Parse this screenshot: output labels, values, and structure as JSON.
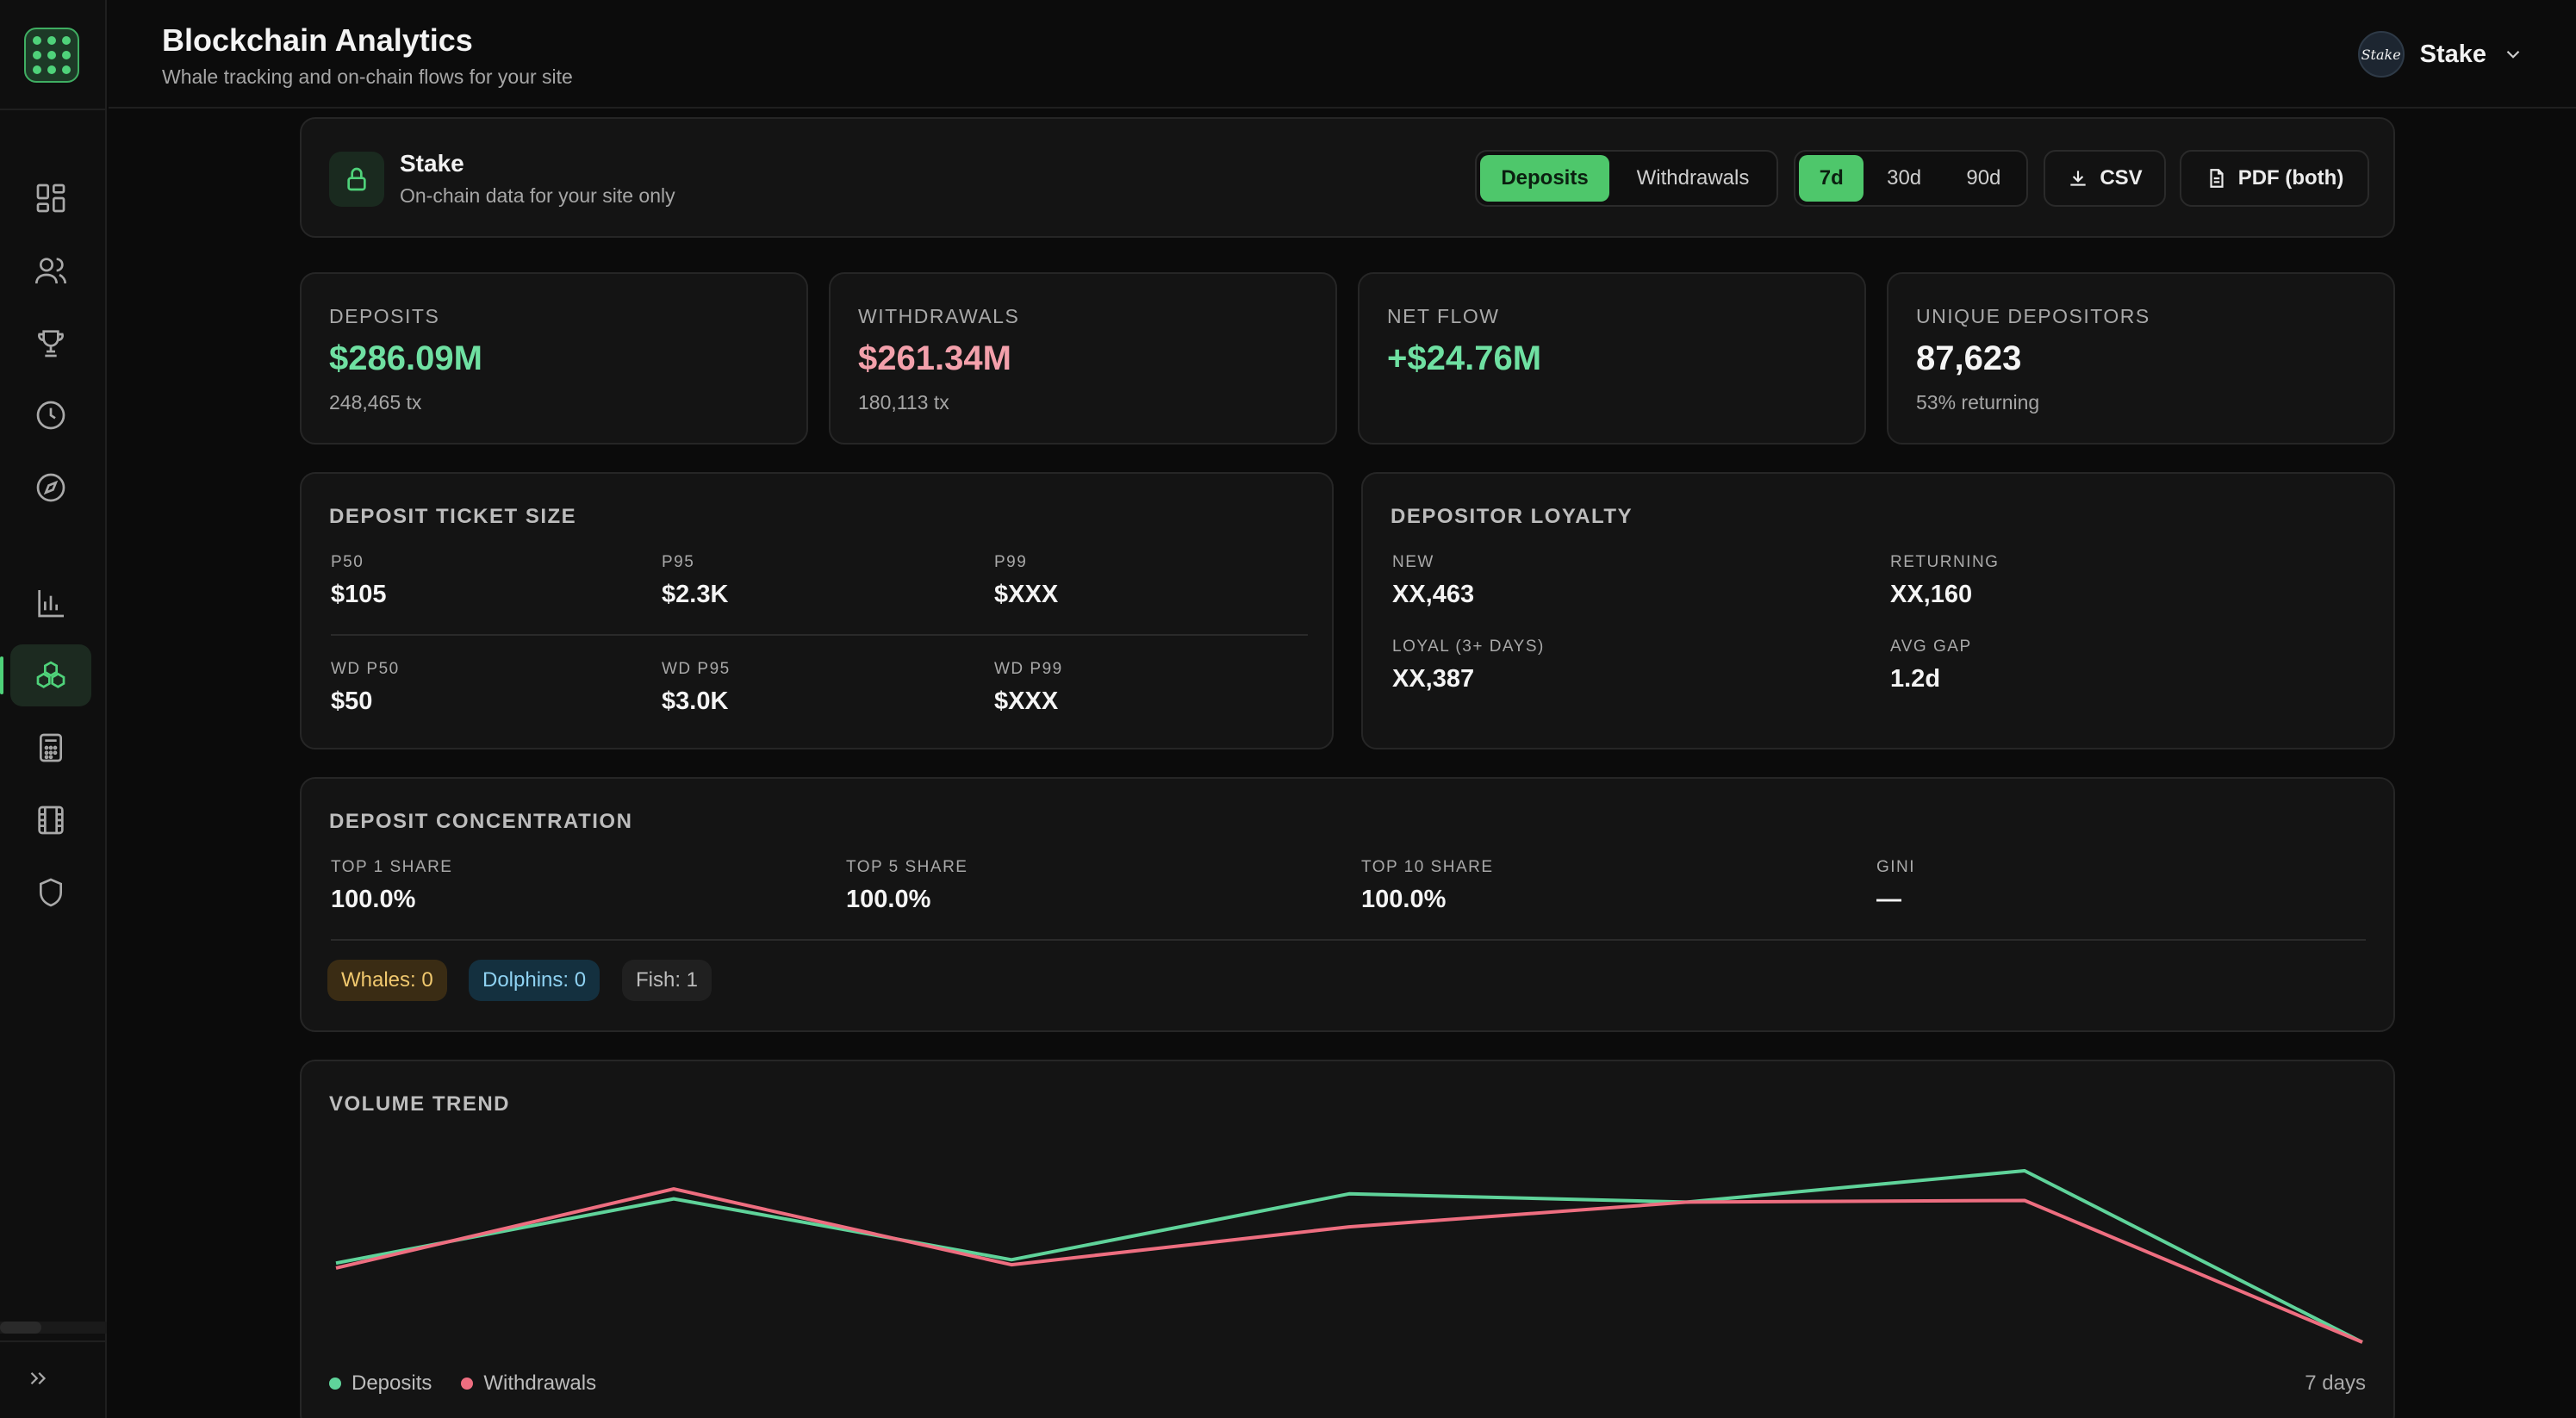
{
  "header": {
    "title": "Blockchain Analytics",
    "subtitle": "Whale tracking and on-chain flows for your site",
    "account_name": "Stake",
    "avatar_text": "Stake"
  },
  "sidebar": {
    "items": [
      {
        "icon": "dashboard-icon"
      },
      {
        "icon": "users-icon"
      },
      {
        "icon": "trophy-icon"
      },
      {
        "icon": "clock-icon"
      },
      {
        "icon": "compass-icon"
      },
      {
        "icon": "bar-chart-icon"
      },
      {
        "icon": "blockchain-icon",
        "active": true
      },
      {
        "icon": "calculator-icon"
      },
      {
        "icon": "film-icon"
      },
      {
        "icon": "shield-icon"
      }
    ]
  },
  "toolbar": {
    "site_name": "Stake",
    "site_desc": "On-chain data for your site only",
    "type_options": [
      "Deposits",
      "Withdrawals"
    ],
    "type_selected": "Deposits",
    "range_options": [
      "7d",
      "30d",
      "90d"
    ],
    "range_selected": "7d",
    "csv_label": "CSV",
    "pdf_label": "PDF (both)"
  },
  "stats": {
    "deposits": {
      "label": "DEPOSITS",
      "value": "$286.09M",
      "sub": "248,465 tx"
    },
    "withdrawals": {
      "label": "WITHDRAWALS",
      "value": "$261.34M",
      "sub": "180,113 tx"
    },
    "net_flow": {
      "label": "NET FLOW",
      "value": "+$24.76M"
    },
    "unique": {
      "label": "UNIQUE DEPOSITORS",
      "value": "87,623",
      "sub": "53% returning"
    }
  },
  "ticket": {
    "title": "DEPOSIT TICKET SIZE",
    "p50": {
      "k": "P50",
      "v": "$105"
    },
    "p95": {
      "k": "P95",
      "v": "$2.3K"
    },
    "p99": {
      "k": "P99",
      "v": "$XXX"
    },
    "wd_p50": {
      "k": "WD P50",
      "v": "$50"
    },
    "wd_p95": {
      "k": "WD P95",
      "v": "$3.0K"
    },
    "wd_p99": {
      "k": "WD P99",
      "v": "$XXX"
    }
  },
  "loyalty": {
    "title": "DEPOSITOR LOYALTY",
    "new": {
      "k": "NEW",
      "v": "XX,463"
    },
    "returning": {
      "k": "RETURNING",
      "v": "XX,160"
    },
    "loyal": {
      "k": "LOYAL (3+ DAYS)",
      "v": "XX,387"
    },
    "gap": {
      "k": "AVG GAP",
      "v": "1.2d"
    }
  },
  "concentration": {
    "title": "DEPOSIT CONCENTRATION",
    "top1": {
      "k": "TOP 1 SHARE",
      "v": "100.0%"
    },
    "top5": {
      "k": "TOP 5 SHARE",
      "v": "100.0%"
    },
    "top10": {
      "k": "TOP 10 SHARE",
      "v": "100.0%"
    },
    "gini": {
      "k": "GINI",
      "v": "—"
    },
    "chips": {
      "whales": "Whales: 0",
      "dolphins": "Dolphins: 0",
      "fish": "Fish: 1"
    }
  },
  "trend": {
    "title": "VOLUME TREND",
    "period": "7 days"
  },
  "colors": {
    "accent": "#4ec76b",
    "deposits_line": "#5fd39a",
    "withdrawals_line": "#ee6e80"
  },
  "chart_data": {
    "type": "line",
    "title": "VOLUME TREND",
    "x": [
      1,
      2,
      3,
      4,
      5,
      6,
      7
    ],
    "series": [
      {
        "name": "Deposits",
        "values": [
          48,
          87,
          50,
          90,
          85,
          104,
          0
        ]
      },
      {
        "name": "Withdrawals",
        "values": [
          45,
          93,
          47,
          70,
          85,
          86,
          0
        ]
      }
    ],
    "ylim": [
      0,
      115
    ],
    "grid": false,
    "legend": "bottom-left"
  }
}
